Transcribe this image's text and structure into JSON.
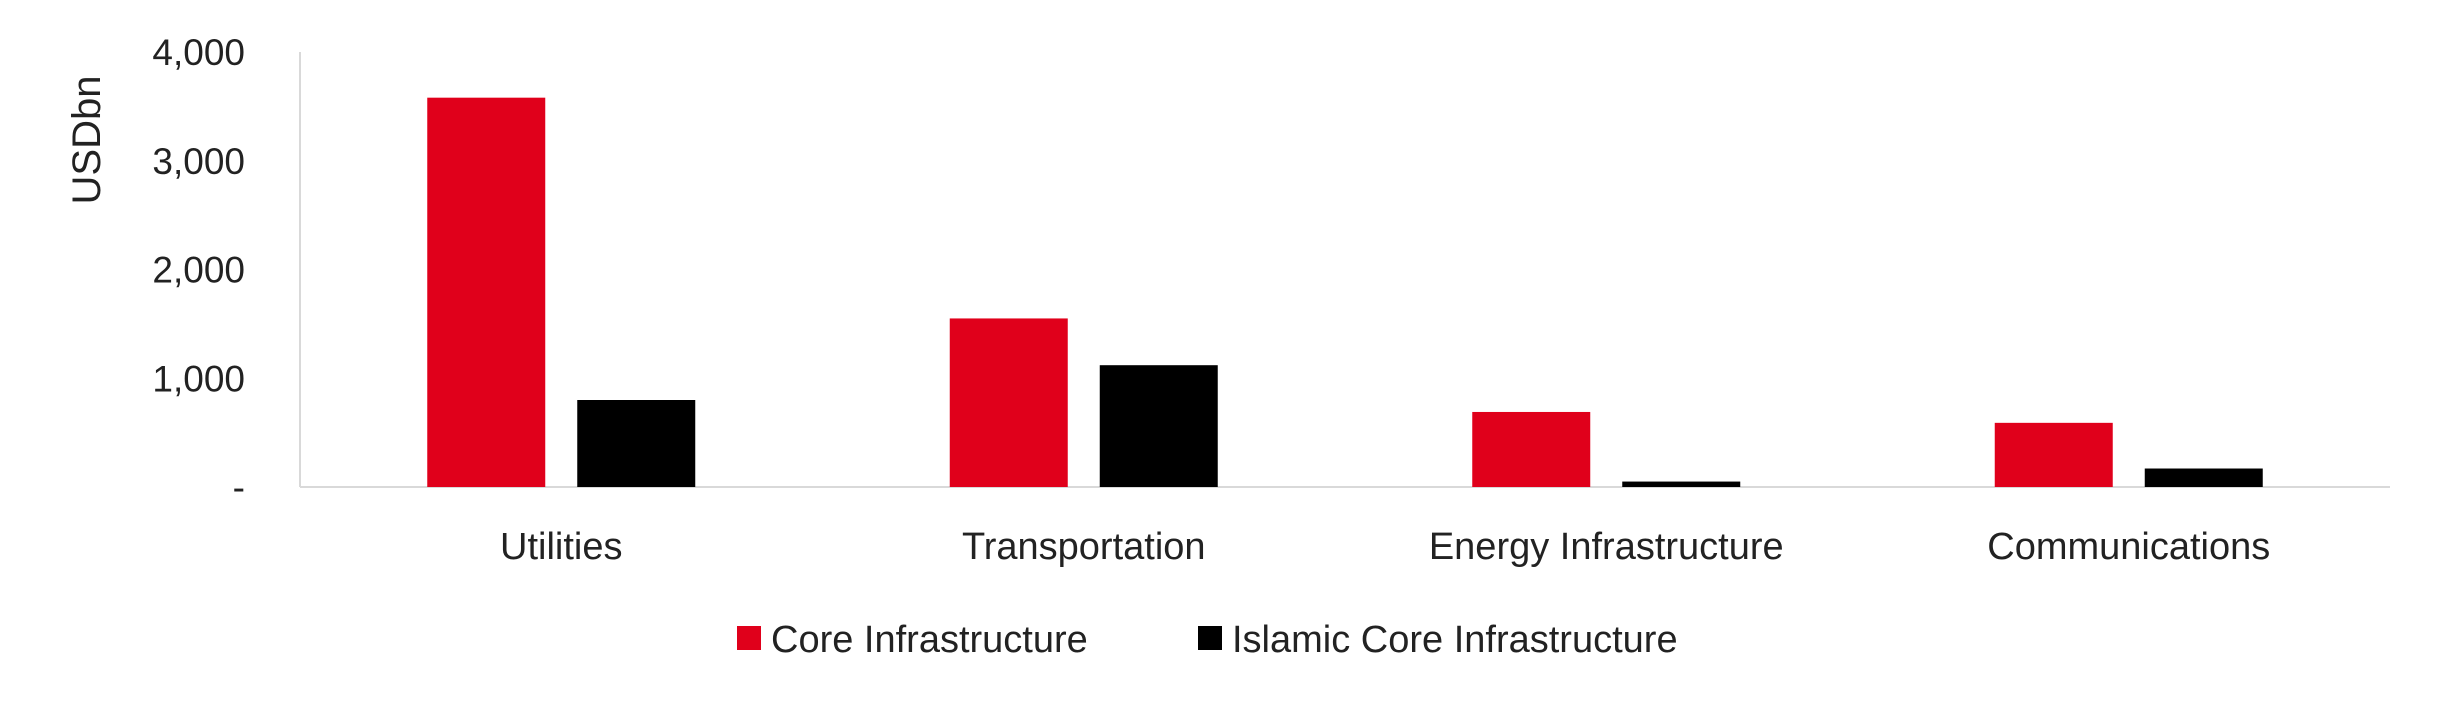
{
  "chart_data": {
    "type": "bar",
    "title": "",
    "xlabel": "",
    "ylabel": "USDbn",
    "ylim": [
      0,
      4000
    ],
    "y_ticks": [
      0,
      1000,
      2000,
      3000,
      4000
    ],
    "y_tick_labels": [
      "-",
      "1,000",
      "2,000",
      "3,000",
      "4,000"
    ],
    "categories": [
      "Utilities",
      "Transportation",
      "Energy Infrastructure",
      "Communications"
    ],
    "series": [
      {
        "name": "Core Infrastructure",
        "color": "#e0001b",
        "values": [
          3580,
          1550,
          690,
          590
        ]
      },
      {
        "name": "Islamic Core Infrastructure",
        "color": "#000000",
        "values": [
          800,
          1120,
          50,
          170
        ]
      }
    ],
    "grid": false,
    "legend_position": "bottom-center"
  }
}
